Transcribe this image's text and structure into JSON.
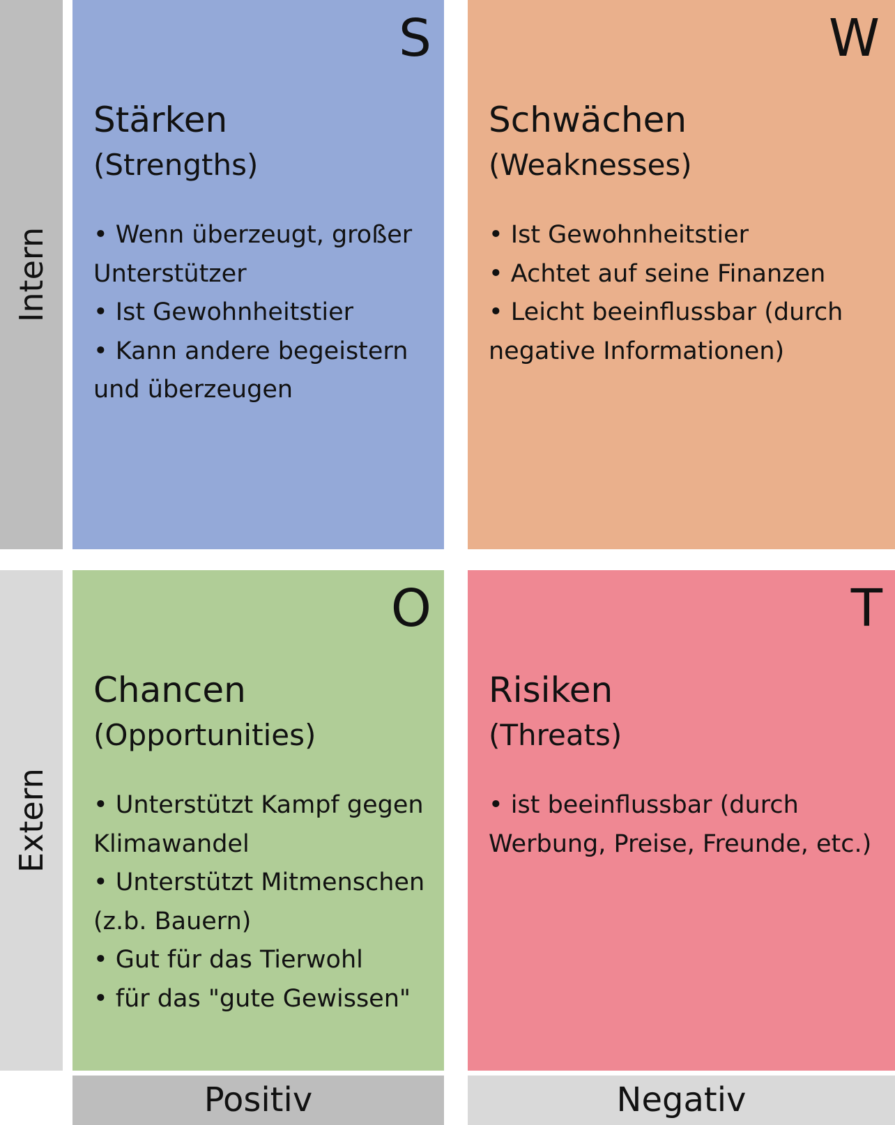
{
  "colors": {
    "strengths": "#94a9d8",
    "weaknesses": "#eab08c",
    "opportunities": "#b0cd97",
    "threats": "#ef8893",
    "intern_bar": "#bdbdbd",
    "extern_bar": "#d9d9d9",
    "positiv_bar": "#bdbdbd",
    "negativ_bar": "#d9d9d9"
  },
  "rows": {
    "intern": "Intern",
    "extern": "Extern"
  },
  "columns": {
    "positiv": "Positiv",
    "negativ": "Negativ"
  },
  "quadrants": {
    "s": {
      "letter": "S",
      "title": "Stärken",
      "subtitle": "(Strengths)",
      "items": [
        "Wenn überzeugt, großer Unterstützer",
        "Ist Gewohnheitstier",
        "Kann andere begeistern und überzeugen"
      ]
    },
    "w": {
      "letter": "W",
      "title": "Schwächen",
      "subtitle": "(Weaknesses)",
      "items": [
        "Ist Gewohnheitstier",
        "Achtet auf seine Finanzen",
        "Leicht beeinflussbar (durch negative Informationen)"
      ]
    },
    "o": {
      "letter": "O",
      "title": "Chancen",
      "subtitle": "(Opportunities)",
      "items": [
        "Unterstützt Kampf gegen Klimawandel",
        "Unterstützt Mitmenschen (z.b. Bauern)",
        "Gut für das Tierwohl",
        "für das \"gute Gewissen\""
      ]
    },
    "t": {
      "letter": "T",
      "title": "Risiken",
      "subtitle": "(Threats)",
      "items": [
        "ist beeinflussbar (durch Werbung, Preise, Freunde, etc.)"
      ]
    }
  }
}
